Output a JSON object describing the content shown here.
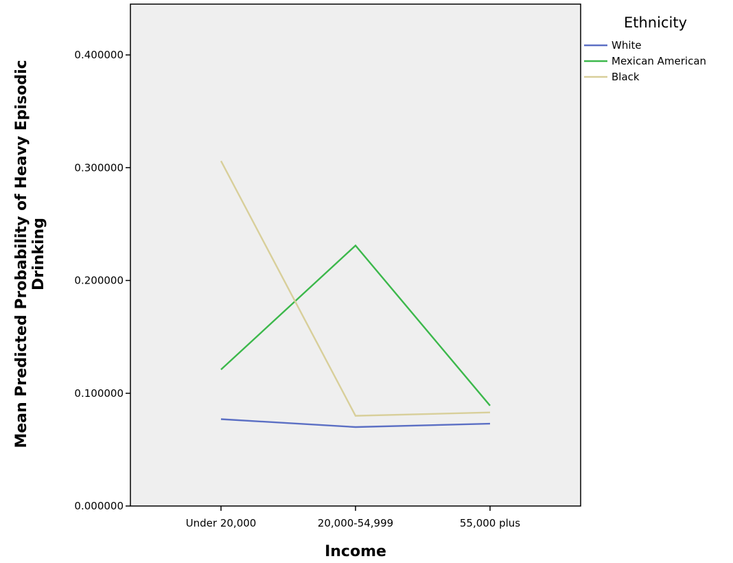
{
  "chart_data": {
    "type": "line",
    "title": "",
    "xlabel": "Income",
    "ylabel_lines": [
      "Mean Predicted Probability of Heavy Episodic",
      "Drinking"
    ],
    "categories": [
      "Under 20,000",
      "20,000-54,999",
      "55,000 plus"
    ],
    "ylim": [
      0,
      0.4
    ],
    "yticks": [
      0.0,
      0.1,
      0.2,
      0.3,
      0.4
    ],
    "ytick_labels": [
      "0.000000",
      "0.100000",
      "0.200000",
      "0.300000",
      "0.400000"
    ],
    "grid": false,
    "legend": {
      "title": "Ethnicity",
      "placement": "right-outside-top"
    },
    "series": [
      {
        "name": "White",
        "color": "#5b6fc4",
        "values": [
          0.077,
          0.07,
          0.073
        ]
      },
      {
        "name": "Mexican American",
        "color": "#3cb84b",
        "values": [
          0.121,
          0.231,
          0.089
        ]
      },
      {
        "name": "Black",
        "color": "#d8cf9a",
        "values": [
          0.306,
          0.08,
          0.083
        ]
      }
    ],
    "plot_background": "#efefef"
  }
}
